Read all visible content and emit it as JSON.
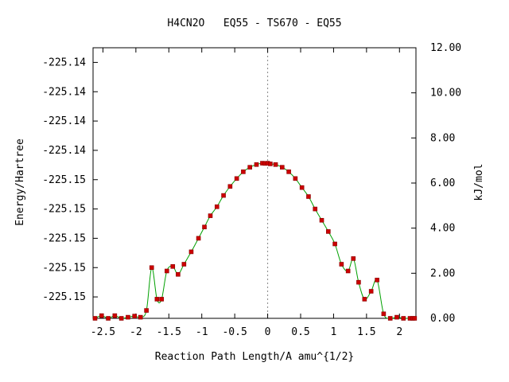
{
  "chart_data": {
    "type": "line",
    "title": "H4CN2O   EQ55 - TS670 - EQ55",
    "xlabel": "Reaction Path Length/A amu^{1/2}",
    "ylabel": "Energy/Hartree",
    "y2label": "kJ/mol",
    "xlim": [
      -2.65,
      2.25
    ],
    "ylim": [
      0.0,
      12.0
    ],
    "x_ticks": [
      -2.5,
      -2,
      -1.5,
      -1,
      -0.5,
      0,
      0.5,
      1,
      1.5,
      2
    ],
    "x_tick_labels": [
      "-2.5",
      "-2",
      "-1.5",
      "-1",
      "-0.5",
      "0",
      "0.5",
      "1",
      "1.5",
      "2"
    ],
    "y2_ticks": [
      0,
      2,
      4,
      6,
      8,
      10,
      12
    ],
    "y2_tick_labels": [
      "0.00",
      "2.00",
      "4.00",
      "6.00",
      "8.00",
      "10.00",
      "12.00"
    ],
    "y_tick_values_kjmol": [
      0.95,
      2.25,
      3.55,
      4.85,
      6.15,
      7.45,
      8.75,
      10.05,
      11.35
    ],
    "y_tick_labels": [
      "-225.15",
      "-225.15",
      "-225.15",
      "-225.15",
      "-225.15",
      "-225.14",
      "-225.14",
      "-225.14",
      "-225.14"
    ],
    "ts_marker_x": 0.0,
    "grid": false,
    "colors": {
      "curve": "#00a000",
      "points": "#cc0000",
      "ts_line": "#888888",
      "axes": "#000000"
    },
    "series": [
      {
        "x": [
          -2.62,
          -2.52,
          -2.42,
          -2.32,
          -2.22,
          -2.12,
          -2.02,
          -1.93,
          -1.84,
          -1.76,
          -1.68,
          -1.61,
          -1.53,
          -1.44,
          -1.36,
          -1.27,
          -1.16,
          -1.05,
          -0.96,
          -0.87,
          -0.77,
          -0.67,
          -0.57,
          -0.47,
          -0.37,
          -0.27,
          -0.17,
          -0.08,
          -0.04,
          0.0,
          0.04,
          0.12,
          0.22,
          0.32,
          0.42,
          0.52,
          0.62,
          0.72,
          0.82,
          0.92,
          1.02,
          1.12,
          1.22,
          1.3,
          1.38,
          1.47,
          1.57,
          1.66,
          1.76,
          1.86,
          1.96,
          2.06,
          2.16,
          2.2,
          2.23
        ],
        "y": [
          0.0,
          0.12,
          0.0,
          0.12,
          0.0,
          0.05,
          0.1,
          0.05,
          0.35,
          2.25,
          0.85,
          0.85,
          2.1,
          2.3,
          1.95,
          2.4,
          2.95,
          3.55,
          4.05,
          4.55,
          4.95,
          5.45,
          5.85,
          6.2,
          6.5,
          6.7,
          6.82,
          6.88,
          6.87,
          6.88,
          6.85,
          6.82,
          6.7,
          6.5,
          6.2,
          5.8,
          5.4,
          4.85,
          4.35,
          3.85,
          3.3,
          2.4,
          2.1,
          2.65,
          1.6,
          0.85,
          1.2,
          1.7,
          0.2,
          0.0,
          0.05,
          0.0,
          0.0,
          0.0,
          0.0
        ]
      }
    ]
  }
}
